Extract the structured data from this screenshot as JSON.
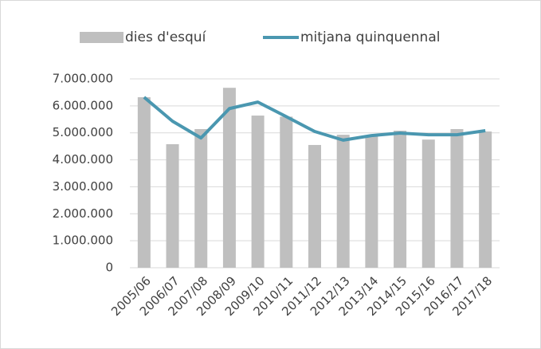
{
  "chart_data": {
    "type": "combo",
    "categories": [
      "2005/06",
      "2006/07",
      "2007/08",
      "2008/09",
      "2009/10",
      "2010/11",
      "2011/12",
      "2012/13",
      "2013/14",
      "2014/15",
      "2015/16",
      "2016/17",
      "2017/18"
    ],
    "series": [
      {
        "name": "dies d'esquí",
        "type": "bar",
        "color": "#bfbfbf",
        "values": [
          6320000,
          4580000,
          5140000,
          6670000,
          5640000,
          5600000,
          4550000,
          4930000,
          4870000,
          5080000,
          4750000,
          5140000,
          5050000
        ]
      },
      {
        "name": "mitjana quinquennal",
        "type": "line",
        "color": "#4a97b0",
        "values": [
          6320000,
          5430000,
          4810000,
          5900000,
          6140000,
          5600000,
          5050000,
          4730000,
          4900000,
          4990000,
          4930000,
          4930000,
          5080000
        ]
      }
    ],
    "ylim": [
      0,
      7000000
    ],
    "yticks": [
      0,
      {
        "value": 1000000,
        "label": "1.000.000"
      },
      {
        "value": 2000000,
        "label": "2.000.000"
      },
      {
        "value": 3000000,
        "label": "3.000.000"
      },
      {
        "value": 4000000,
        "label": "4.000.000"
      },
      {
        "value": 5000000,
        "label": "5.000.000"
      },
      {
        "value": 6000000,
        "label": "6.000.000"
      },
      {
        "value": 7000000,
        "label": "7.000.000"
      }
    ],
    "grid": true,
    "legend": "top"
  }
}
